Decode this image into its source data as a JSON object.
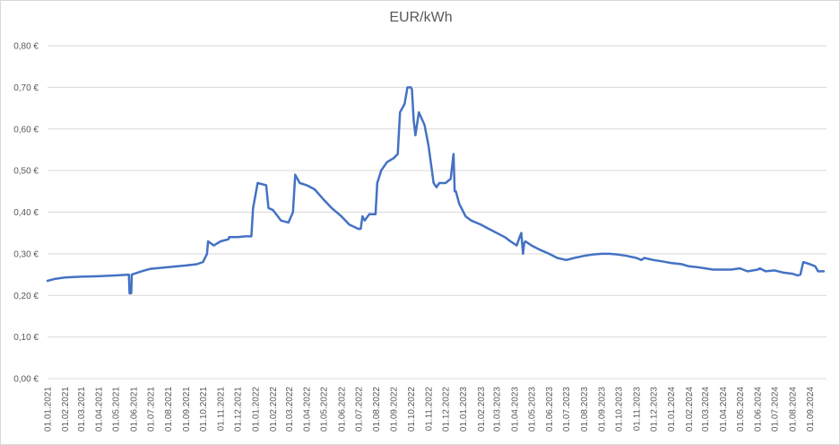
{
  "chart_data": {
    "type": "line",
    "title": "EUR/kWh",
    "xlabel": "",
    "ylabel": "",
    "ylim": [
      0,
      0.8
    ],
    "grid": true,
    "legend": "none",
    "line_color": "#4472c4",
    "y_ticks": [
      "0,00 €",
      "0,10 €",
      "0,20 €",
      "0,30 €",
      "0,40 €",
      "0,50 €",
      "0,60 €",
      "0,70 €",
      "0,80 €"
    ],
    "x_ticks": [
      "01.01.2021",
      "01.02.2021",
      "01.03.2021",
      "01.04.2021",
      "01.05.2021",
      "01.06.2021",
      "01.07.2021",
      "01.08.2021",
      "01.09.2021",
      "01.10.2021",
      "01.11.2021",
      "01.12.2021",
      "01.01.2022",
      "01.02.2022",
      "01.03.2022",
      "01.04.2022",
      "01.05.2022",
      "01.06.2022",
      "01.07.2022",
      "01.08.2022",
      "01.09.2022",
      "01.10.2022",
      "01.11.2022",
      "01.12.2022",
      "01.01.2023",
      "01.02.2023",
      "01.03.2023",
      "01.04.2023",
      "01.05.2023",
      "01.06.2023",
      "01.07.2023",
      "01.08.2023",
      "01.09.2023",
      "01.10.2023",
      "01.11.2023",
      "01.12.2023",
      "01.01.2024",
      "01.02.2024",
      "01.03.2024",
      "01.04.2024",
      "01.05.2024",
      "01.06.2024",
      "01.07.2024",
      "01.08.2024",
      "01.09.2024"
    ],
    "series": [
      {
        "x": [
          "2021-01-01",
          "2021-01-15",
          "2021-02-01",
          "2021-03-01",
          "2021-04-01",
          "2021-05-01",
          "2021-05-24",
          "2021-05-25",
          "2021-05-28",
          "2021-05-29",
          "2021-06-15",
          "2021-07-01",
          "2021-08-01",
          "2021-09-01",
          "2021-09-20",
          "2021-10-01",
          "2021-10-08",
          "2021-10-10",
          "2021-10-20",
          "2021-11-01",
          "2021-11-15",
          "2021-11-16",
          "2021-12-01",
          "2021-12-15",
          "2021-12-25",
          "2021-12-28",
          "2022-01-05",
          "2022-01-20",
          "2022-01-24",
          "2022-02-01",
          "2022-02-15",
          "2022-02-28",
          "2022-03-08",
          "2022-03-12",
          "2022-03-20",
          "2022-04-01",
          "2022-04-15",
          "2022-05-01",
          "2022-05-15",
          "2022-06-01",
          "2022-06-15",
          "2022-07-01",
          "2022-07-05",
          "2022-07-08",
          "2022-07-12",
          "2022-07-20",
          "2022-07-31",
          "2022-08-03",
          "2022-08-10",
          "2022-08-20",
          "2022-09-01",
          "2022-09-08",
          "2022-09-12",
          "2022-09-20",
          "2022-09-25",
          "2022-10-01",
          "2022-10-03",
          "2022-10-06",
          "2022-10-09",
          "2022-10-15",
          "2022-10-25",
          "2022-11-01",
          "2022-11-10",
          "2022-11-15",
          "2022-11-20",
          "2022-11-25",
          "2022-12-01",
          "2022-12-10",
          "2022-12-15",
          "2022-12-17",
          "2022-12-19",
          "2022-12-25",
          "2023-01-05",
          "2023-01-15",
          "2023-02-01",
          "2023-02-15",
          "2023-03-01",
          "2023-03-15",
          "2023-03-25",
          "2023-04-05",
          "2023-04-10",
          "2023-04-13",
          "2023-04-16",
          "2023-04-18",
          "2023-04-20",
          "2023-05-01",
          "2023-05-15",
          "2023-06-01",
          "2023-06-15",
          "2023-07-01",
          "2023-07-15",
          "2023-08-01",
          "2023-08-15",
          "2023-09-01",
          "2023-09-15",
          "2023-10-01",
          "2023-10-15",
          "2023-11-01",
          "2023-11-10",
          "2023-11-15",
          "2023-12-01",
          "2023-12-15",
          "2024-01-01",
          "2024-01-20",
          "2024-02-01",
          "2024-02-15",
          "2024-03-01",
          "2024-03-15",
          "2024-04-01",
          "2024-04-15",
          "2024-05-01",
          "2024-05-10",
          "2024-05-15",
          "2024-06-01",
          "2024-06-05",
          "2024-06-15",
          "2024-07-01",
          "2024-07-15",
          "2024-08-01",
          "2024-08-10",
          "2024-08-15",
          "2024-08-20",
          "2024-08-25",
          "2024-09-01",
          "2024-09-10",
          "2024-09-15",
          "2024-09-25"
        ],
        "values": [
          0.235,
          0.24,
          0.243,
          0.245,
          0.246,
          0.248,
          0.25,
          0.205,
          0.205,
          0.25,
          0.258,
          0.264,
          0.268,
          0.272,
          0.275,
          0.28,
          0.3,
          0.33,
          0.32,
          0.33,
          0.335,
          0.34,
          0.34,
          0.342,
          0.342,
          0.41,
          0.47,
          0.465,
          0.41,
          0.405,
          0.38,
          0.375,
          0.4,
          0.49,
          0.47,
          0.465,
          0.455,
          0.43,
          0.41,
          0.39,
          0.37,
          0.36,
          0.36,
          0.39,
          0.38,
          0.395,
          0.395,
          0.47,
          0.5,
          0.52,
          0.53,
          0.54,
          0.64,
          0.66,
          0.7,
          0.7,
          0.695,
          0.62,
          0.585,
          0.64,
          0.61,
          0.56,
          0.47,
          0.46,
          0.47,
          0.47,
          0.47,
          0.48,
          0.54,
          0.45,
          0.45,
          0.42,
          0.39,
          0.38,
          0.37,
          0.36,
          0.35,
          0.34,
          0.33,
          0.32,
          0.34,
          0.35,
          0.3,
          0.325,
          0.33,
          0.32,
          0.31,
          0.3,
          0.29,
          0.285,
          0.29,
          0.295,
          0.298,
          0.3,
          0.3,
          0.298,
          0.295,
          0.29,
          0.285,
          0.29,
          0.285,
          0.282,
          0.278,
          0.275,
          0.27,
          0.268,
          0.265,
          0.262,
          0.262,
          0.262,
          0.265,
          0.26,
          0.258,
          0.262,
          0.265,
          0.258,
          0.26,
          0.255,
          0.252,
          0.248,
          0.25,
          0.28,
          0.278,
          0.275,
          0.27,
          0.258,
          0.258
        ]
      }
    ]
  }
}
